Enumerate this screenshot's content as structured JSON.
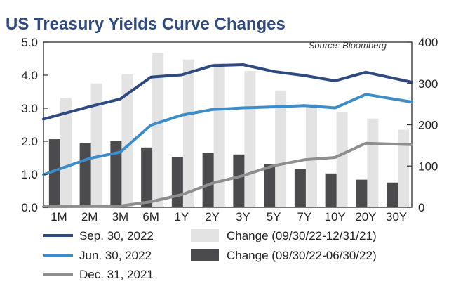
{
  "chart_data": {
    "type": "bar+line",
    "title": "US Treasury Yields Curve Changes",
    "source": "Source: Bloomberg",
    "categories": [
      "1M",
      "2M",
      "3M",
      "6M",
      "1Y",
      "2Y",
      "3Y",
      "5Y",
      "7Y",
      "10Y",
      "20Y",
      "30Y"
    ],
    "left_axis": {
      "ylim": [
        0,
        5
      ],
      "ticks": [
        "0.0",
        "1.0",
        "2.0",
        "3.0",
        "4.0",
        "5.0"
      ]
    },
    "right_axis": {
      "ylim": [
        0,
        400
      ],
      "ticks": [
        "0",
        "100",
        "200",
        "300",
        "400"
      ]
    },
    "bar_series": [
      {
        "name": "Change (09/30/22-12/31/21)",
        "axis": "right",
        "color": "#e3e3e4",
        "values": [
          265,
          300,
          322,
          373,
          358,
          350,
          330,
          283,
          250,
          230,
          215,
          188
        ]
      },
      {
        "name": "Change (09/30/22-06/30/22)",
        "axis": "right",
        "color": "#4b4b4d",
        "values": [
          165,
          155,
          160,
          145,
          122,
          132,
          128,
          105,
          93,
          82,
          67,
          60
        ]
      }
    ],
    "line_series": [
      {
        "name": "Sep. 30, 2022",
        "axis": "left",
        "color": "#2e4a80",
        "values": [
          2.67,
          3.05,
          3.28,
          3.94,
          4.01,
          4.29,
          4.32,
          4.11,
          3.99,
          3.83,
          4.09,
          3.79
        ]
      },
      {
        "name": "Jun. 30, 2022",
        "axis": "left",
        "color": "#3d8cca",
        "values": [
          0.99,
          1.48,
          1.67,
          2.49,
          2.79,
          2.96,
          3.01,
          3.04,
          3.08,
          3.01,
          3.42,
          3.19
        ]
      },
      {
        "name": "Dec. 31, 2021",
        "axis": "left",
        "color": "#8e8e8e",
        "values": [
          0.02,
          0.03,
          0.04,
          0.17,
          0.38,
          0.73,
          0.96,
          1.26,
          1.44,
          1.51,
          1.94,
          1.9
        ]
      }
    ],
    "legend": [
      {
        "label": "Sep. 30, 2022",
        "kind": "line",
        "color": "#2e4a80"
      },
      {
        "label": "Change (09/30/22-12/31/21)",
        "kind": "box",
        "color": "#e3e3e4"
      },
      {
        "label": "Jun. 30, 2022",
        "kind": "line",
        "color": "#3d8cca"
      },
      {
        "label": "Change (09/30/22-06/30/22)",
        "kind": "box",
        "color": "#4b4b4d"
      },
      {
        "label": "Dec. 31, 2021",
        "kind": "line",
        "color": "#8e8e8e"
      }
    ],
    "grid": false,
    "legend_position": "bottom"
  }
}
